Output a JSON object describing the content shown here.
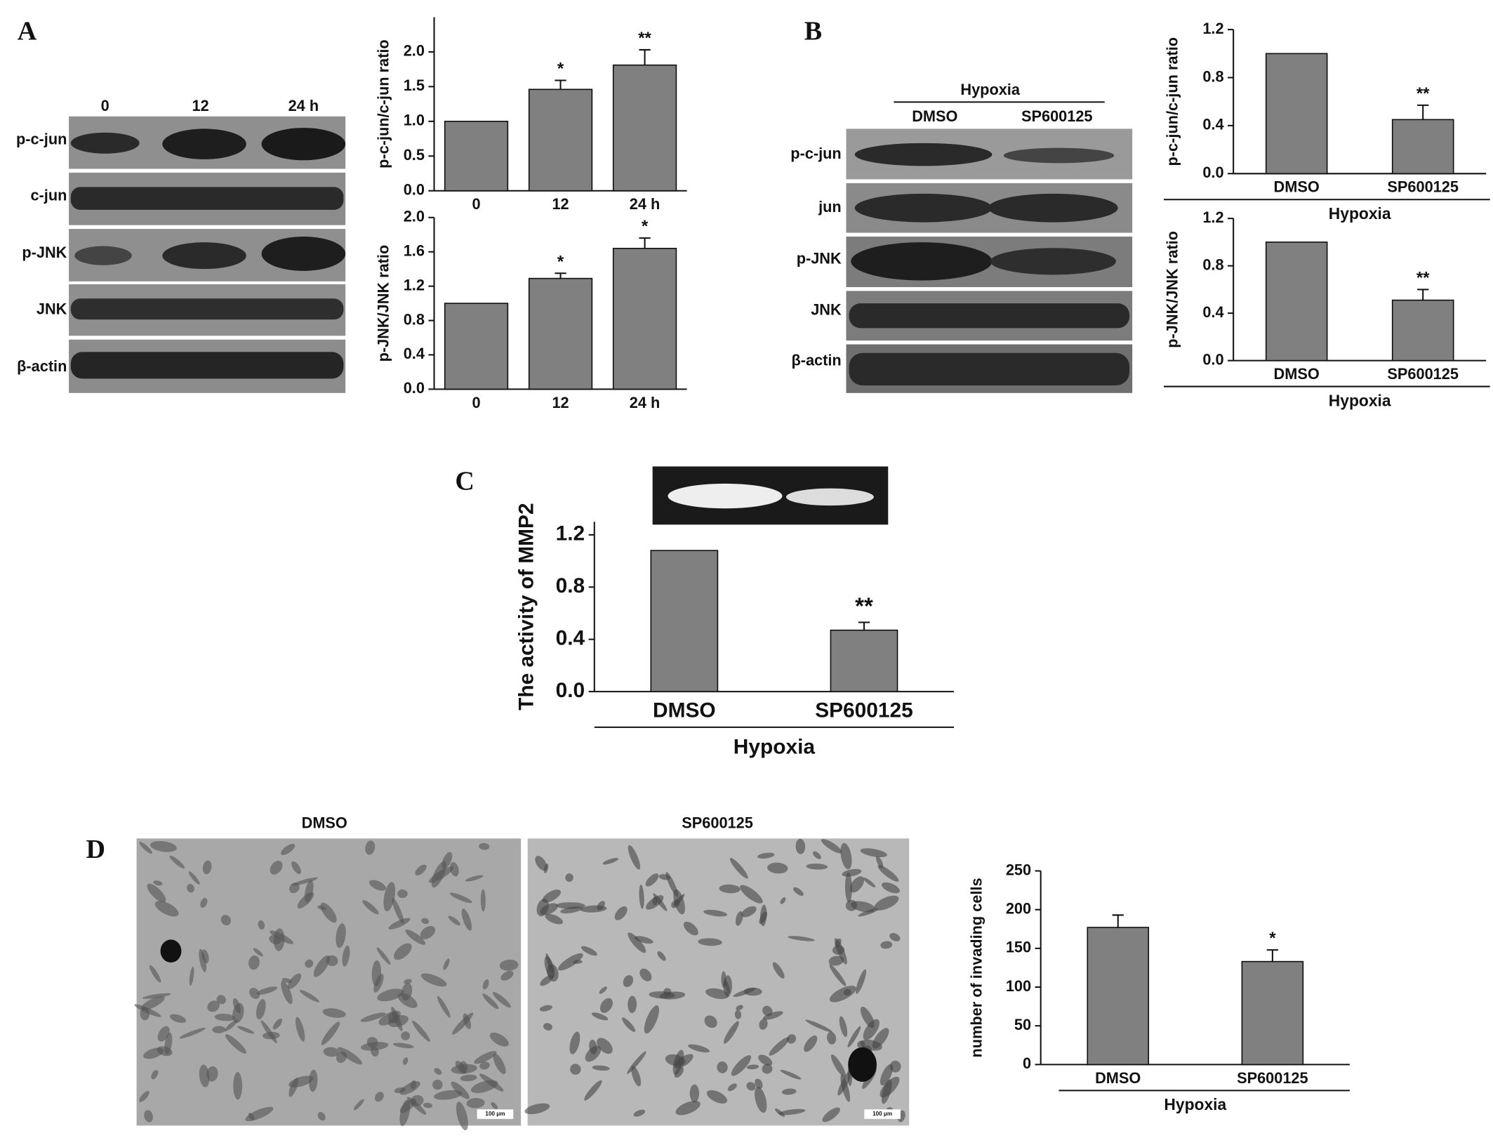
{
  "panels": [
    "A",
    "B",
    "C",
    "D"
  ],
  "blot_a": {
    "lanes": [
      "0",
      "12",
      "24 h"
    ],
    "rows": [
      "p-c-jun",
      "c-jun",
      "p-JNK",
      "JNK",
      "β-actin"
    ]
  },
  "blot_b": {
    "group": "Hypoxia",
    "lanes": [
      "DMSO",
      "SP600125"
    ],
    "rows": [
      "p-c-jun",
      "jun",
      "p-JNK",
      "JNK",
      "β-actin"
    ]
  },
  "micrographs": {
    "labels": [
      "DMSO",
      "SP600125"
    ],
    "scale_bar": "100 μm"
  },
  "chart_data": [
    {
      "type": "bar",
      "ylabel": "p-c-jun/c-jun ratio",
      "color": "#808080",
      "categories": [
        "0",
        "12",
        "24 h"
      ],
      "values": [
        1.0,
        1.46,
        1.81
      ],
      "errors": [
        0,
        0.13,
        0.22
      ],
      "significance": [
        null,
        "*",
        "**"
      ],
      "ylim": [
        0,
        2.5
      ],
      "yticks": [
        {
          "value": 0,
          "label": "0.0"
        },
        {
          "value": 0.5,
          "label": "0.5"
        },
        {
          "value": 1,
          "label": "1.0"
        },
        {
          "value": 1.5,
          "label": "1.5"
        },
        {
          "value": 2,
          "label": "2.0"
        }
      ]
    },
    {
      "type": "bar",
      "ylabel": "p-JNK/JNK ratio",
      "color": "#808080",
      "categories": [
        "0",
        "12",
        "24 h"
      ],
      "values": [
        1.0,
        1.29,
        1.64
      ],
      "errors": [
        0,
        0.06,
        0.12
      ],
      "significance": [
        null,
        "*",
        "*"
      ],
      "ylim": [
        0,
        2.0
      ],
      "yticks": [
        {
          "value": 0,
          "label": "0.0"
        },
        {
          "value": 0.4,
          "label": "0.4"
        },
        {
          "value": 0.8,
          "label": "0.8"
        },
        {
          "value": 1.2,
          "label": "1.2"
        },
        {
          "value": 1.6,
          "label": "1.6"
        },
        {
          "value": 2,
          "label": "2.0"
        }
      ]
    },
    {
      "type": "bar",
      "ylabel": "p-c-jun/c-jun ratio",
      "color": "#808080",
      "group_label": "Hypoxia",
      "categories": [
        "DMSO",
        "SP600125"
      ],
      "values": [
        1.0,
        0.45
      ],
      "errors": [
        0,
        0.12
      ],
      "significance": [
        null,
        "**"
      ],
      "ylim": [
        0,
        1.2
      ],
      "yticks": [
        {
          "value": 0,
          "label": "0.0"
        },
        {
          "value": 0.4,
          "label": "0.4"
        },
        {
          "value": 0.8,
          "label": "0.8"
        },
        {
          "value": 1.2,
          "label": "1.2"
        }
      ]
    },
    {
      "type": "bar",
      "ylabel": "p-JNK/JNK ratio",
      "color": "#808080",
      "group_label": "Hypoxia",
      "categories": [
        "DMSO",
        "SP600125"
      ],
      "values": [
        1.0,
        0.51
      ],
      "errors": [
        0,
        0.09
      ],
      "significance": [
        null,
        "**"
      ],
      "ylim": [
        0,
        1.2
      ],
      "yticks": [
        {
          "value": 0,
          "label": "0.0"
        },
        {
          "value": 0.4,
          "label": "0.4"
        },
        {
          "value": 0.8,
          "label": "0.8"
        },
        {
          "value": 1.2,
          "label": "1.2"
        }
      ]
    },
    {
      "type": "bar",
      "ylabel": "The activity of MMP2",
      "color": "#808080",
      "group_label": "Hypoxia",
      "categories": [
        "DMSO",
        "SP600125"
      ],
      "values": [
        1.08,
        0.47
      ],
      "errors": [
        0,
        0.06
      ],
      "significance": [
        null,
        "**"
      ],
      "ylim": [
        0,
        1.3
      ],
      "yticks": [
        {
          "value": 0,
          "label": "0.0"
        },
        {
          "value": 0.4,
          "label": "0.4"
        },
        {
          "value": 0.8,
          "label": "0.8"
        },
        {
          "value": 1.2,
          "label": "1.2"
        }
      ]
    },
    {
      "type": "bar",
      "ylabel": "number of invading cells",
      "color": "#808080",
      "group_label": "Hypoxia",
      "categories": [
        "DMSO",
        "SP600125"
      ],
      "values": [
        177,
        133
      ],
      "errors": [
        16,
        15
      ],
      "significance": [
        null,
        "*"
      ],
      "ylim": [
        0,
        250
      ],
      "yticks": [
        0,
        50,
        100,
        150,
        200,
        250
      ]
    }
  ]
}
